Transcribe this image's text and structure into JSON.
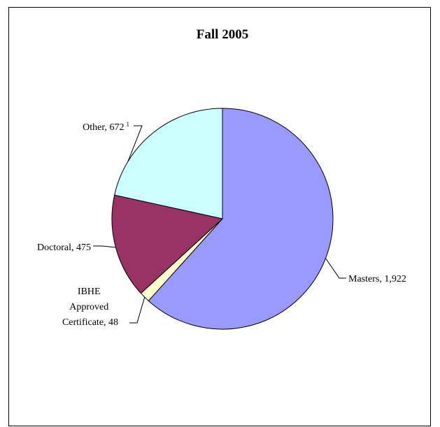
{
  "chart_data": {
    "type": "pie",
    "title": "Fall 2005",
    "slices": [
      {
        "category": "Masters",
        "label": "Masters, 1,922",
        "value": 1922,
        "color": "#9999ff"
      },
      {
        "category": "IBHE Approved Certificate",
        "label_lines": [
          "IBHE",
          "Approved",
          "Certificate, 48"
        ],
        "value": 48,
        "color": "#ffffcc"
      },
      {
        "category": "Doctoral",
        "label": "Doctoral, 475",
        "value": 475,
        "color": "#993366"
      },
      {
        "category": "Other",
        "label": "Other, 672",
        "footnote": "1",
        "value": 672,
        "color": "#ccffff"
      }
    ],
    "start_at": "top",
    "direction": "clockwise",
    "legend": "none"
  }
}
